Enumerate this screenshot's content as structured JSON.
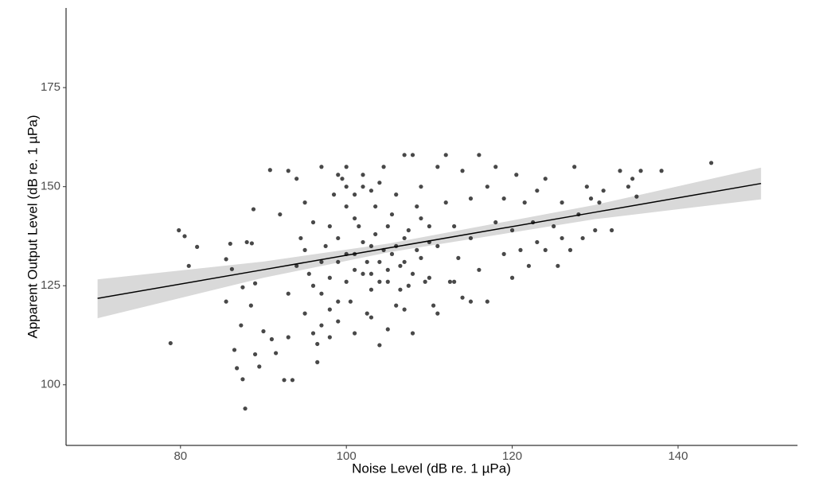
{
  "chart_data": {
    "type": "scatter",
    "x_label": "Noise Level (dB re. 1 µPa)",
    "y_label": "Apparent Output Level (dB re. 1 µPa)",
    "xlim": [
      66.2,
      154.4
    ],
    "ylim": [
      84.7,
      195.1
    ],
    "xticks": [
      80,
      100,
      120,
      140
    ],
    "yticks": [
      100,
      125,
      150,
      175
    ],
    "color": "#1a1a1a",
    "x": [
      78.8,
      79.8,
      80.5,
      81,
      82,
      85.5,
      85.5,
      86,
      86.2,
      86.5,
      86.8,
      87.3,
      87.5,
      87.8,
      87.5,
      88,
      88.6,
      88.5,
      88.8,
      89,
      89.5,
      89,
      90,
      90.8,
      91,
      91.5,
      92,
      92.5,
      93.5,
      93,
      93,
      94,
      94.5,
      95,
      95,
      95.5,
      96,
      96.5,
      96.5,
      97,
      97,
      97.5,
      98,
      98,
      98.5,
      99,
      99,
      99.5,
      100,
      100,
      100.5,
      100,
      101,
      101,
      101.5,
      102,
      102,
      102.5,
      103,
      103,
      103.5,
      104,
      104,
      104.5,
      105,
      105,
      105.5,
      106,
      106,
      106.5,
      107,
      107,
      107.5,
      108,
      108,
      108.5,
      109,
      109,
      110,
      110,
      110.5,
      111,
      111,
      112,
      112,
      112.5,
      113,
      113.5,
      114,
      114,
      115,
      115,
      116,
      116,
      117,
      117,
      118,
      118,
      119,
      119,
      120,
      120,
      120.5,
      121,
      121.5,
      122,
      122.5,
      123,
      123,
      124,
      124,
      125,
      125.5,
      126,
      126,
      127,
      127.5,
      128,
      128.5,
      129,
      129.5,
      130,
      130.5,
      131,
      132,
      133,
      134,
      134.5,
      135,
      135.5,
      138,
      144,
      96,
      97,
      98,
      99,
      100,
      101,
      101,
      102,
      102.5,
      103,
      103.5,
      104,
      104.5,
      105,
      105.5,
      106,
      106.5,
      107,
      107.5,
      108,
      108.5,
      109,
      109.5,
      110,
      93,
      94,
      95,
      96,
      97,
      98,
      99,
      103,
      105,
      107,
      111,
      113,
      115,
      100,
      102,
      104,
      99,
      101,
      103
    ],
    "y": [
      110.5,
      139,
      137.5,
      130,
      134.8,
      131.7,
      121,
      135.6,
      129.2,
      108.8,
      104.2,
      115,
      101.4,
      94,
      124.6,
      136,
      135.7,
      120,
      144.3,
      107.7,
      104.6,
      125.6,
      113.5,
      154.2,
      111.5,
      108,
      143,
      101.2,
      101.2,
      112,
      154,
      152,
      137,
      118,
      146,
      128,
      113,
      110.3,
      105.7,
      155,
      123,
      135,
      140,
      119,
      148,
      131,
      116,
      152,
      126,
      145,
      121,
      155,
      133,
      113,
      140,
      128,
      150,
      118,
      135,
      124,
      145,
      131,
      110,
      155,
      126,
      140,
      133,
      148,
      120,
      130,
      158,
      137,
      125,
      158,
      113,
      145,
      132,
      150,
      127,
      140,
      120,
      155,
      135,
      158,
      146,
      126,
      140,
      132,
      154,
      122,
      137,
      147,
      158,
      129,
      150,
      121,
      155,
      141,
      133,
      147,
      127,
      139,
      153,
      134,
      146,
      130,
      141,
      149,
      136,
      134,
      152,
      140,
      130,
      146,
      137,
      134,
      155,
      143,
      137,
      150,
      147,
      139,
      146,
      149,
      139,
      154,
      150,
      152,
      147.5,
      154,
      154,
      156,
      125,
      131,
      127,
      137,
      133,
      129,
      142,
      136,
      131,
      128,
      138,
      126,
      134,
      129,
      143,
      135,
      124,
      131,
      139,
      128,
      134,
      142,
      126,
      136,
      123,
      130,
      134,
      141,
      115,
      112,
      121,
      117,
      114,
      119,
      118,
      126,
      121,
      150,
      153,
      151,
      153,
      148,
      149
    ],
    "fit": {
      "x": [
        70,
        90,
        105,
        130,
        150
      ],
      "y": [
        121.8,
        129.05,
        134.5,
        143.55,
        150.8
      ],
      "lower": [
        116.8,
        127.0,
        133.4,
        141.8,
        146.8
      ],
      "upper": [
        126.6,
        131.1,
        135.6,
        145.4,
        154.8
      ],
      "color": "#000000",
      "band_color": "#d9d9d9"
    }
  }
}
